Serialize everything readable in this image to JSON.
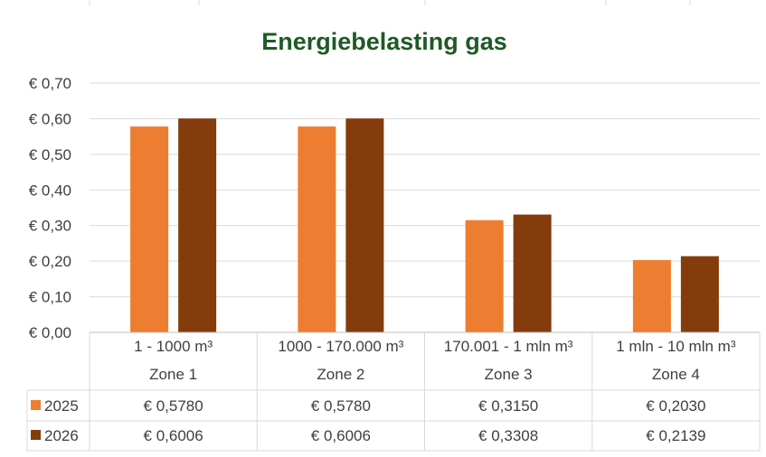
{
  "chart_data": {
    "type": "bar",
    "title": "Energiebelasting gas",
    "categories": [
      {
        "range": "1 - 1000 m³",
        "zone": "Zone 1"
      },
      {
        "range": "1000 - 170.000 m³",
        "zone": "Zone 2"
      },
      {
        "range": "170.001 - 1 mln m³",
        "zone": "Zone 3"
      },
      {
        "range": "1 mln - 10 mln m³",
        "zone": "Zone 4"
      }
    ],
    "series": [
      {
        "name": "2025",
        "color": "#ed7d31",
        "values": [
          0.578,
          0.578,
          0.315,
          0.203
        ],
        "labels": [
          "€ 0,5780",
          "€ 0,5780",
          "€ 0,3150",
          "€ 0,2030"
        ]
      },
      {
        "name": "2026",
        "color": "#843c0c",
        "values": [
          0.6006,
          0.6006,
          0.3308,
          0.2139
        ],
        "labels": [
          "€ 0,6006",
          "€ 0,6006",
          "€ 0,3308",
          "€ 0,2139"
        ]
      }
    ],
    "y_ticks": [
      "€ 0,00",
      "€ 0,10",
      "€ 0,20",
      "€ 0,30",
      "€ 0,40",
      "€ 0,50",
      "€ 0,60",
      "€ 0,70"
    ],
    "ylim": [
      0,
      0.7
    ],
    "grid": true,
    "legend": "data-table-left"
  }
}
